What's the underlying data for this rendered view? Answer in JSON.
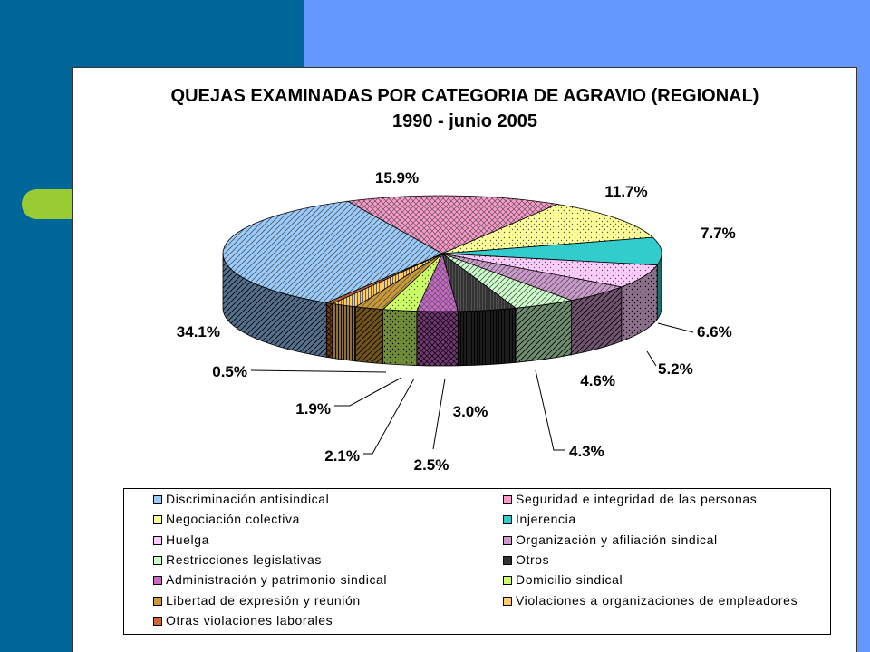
{
  "chart_data": {
    "type": "pie",
    "title": "QUEJAS EXAMINADAS POR CATEGORIA DE AGRAVIO (REGIONAL)",
    "subtitle": "1990 - junio 2005",
    "legend_position": "bottom",
    "slices": [
      {
        "name": "Seguridad e integridad de las personas",
        "value": 15.9,
        "label": "15.9%",
        "color": "#ff99cc",
        "pattern": "crosshatch"
      },
      {
        "name": "Negociación colectiva",
        "value": 11.7,
        "label": "11.7%",
        "color": "#ffff99",
        "pattern": "dots"
      },
      {
        "name": "Injerencia",
        "value": 7.7,
        "label": "7.7%",
        "color": "#33cccc",
        "pattern": "solid"
      },
      {
        "name": "Huelga",
        "value": 6.6,
        "label": "6.6%",
        "color": "#ffccff",
        "pattern": "dots"
      },
      {
        "name": "Organización y afiliación sindical",
        "value": 5.2,
        "label": "5.2%",
        "color": "#cc99cc",
        "pattern": "diagonal"
      },
      {
        "name": "Restricciones legislativas",
        "value": 4.6,
        "label": "4.6%",
        "color": "#ccffcc",
        "pattern": "diagonal"
      },
      {
        "name": "Otros",
        "value": 4.3,
        "label": "4.3%",
        "color": "#333333",
        "pattern": "vertical"
      },
      {
        "name": "Administración y patrimonio sindical",
        "value": 3.0,
        "label": "3.0%",
        "color": "#cc66cc",
        "pattern": "crosshatch"
      },
      {
        "name": "Domicilio sindical",
        "value": 2.5,
        "label": "2.5%",
        "color": "#ccff66",
        "pattern": "dots"
      },
      {
        "name": "Libertad de expresión y reunión",
        "value": 2.1,
        "label": "2.1%",
        "color": "#cc9933",
        "pattern": "diagonal"
      },
      {
        "name": "Violaciones a organizaciones de empleadores",
        "value": 1.9,
        "label": "1.9%",
        "color": "#ffcc66",
        "pattern": "vertical"
      },
      {
        "name": "Otras violaciones laborales",
        "value": 0.5,
        "label": "0.5%",
        "color": "#cc6633",
        "pattern": "crosshatch"
      },
      {
        "name": "Discriminación antisindical",
        "value": 34.1,
        "label": "34.1%",
        "color": "#99ccff",
        "pattern": "diagonal"
      }
    ],
    "legend": [
      {
        "name": "Discriminación antisindical",
        "color": "#99ccff"
      },
      {
        "name": "Seguridad e integridad de las personas",
        "color": "#ff99cc"
      },
      {
        "name": "Negociación colectiva",
        "color": "#ffff99"
      },
      {
        "name": "Injerencia",
        "color": "#33cccc"
      },
      {
        "name": "Huelga",
        "color": "#ffccff"
      },
      {
        "name": "Organización y afiliación sindical",
        "color": "#cc99cc"
      },
      {
        "name": "Restricciones legislativas",
        "color": "#ccffcc"
      },
      {
        "name": "Otros",
        "color": "#333333"
      },
      {
        "name": "Administración y patrimonio sindical",
        "color": "#cc66cc"
      },
      {
        "name": "Domicilio sindical",
        "color": "#ccff66"
      },
      {
        "name": "Libertad de expresión y reunión",
        "color": "#cc9933"
      },
      {
        "name": "Violaciones a organizaciones de empleadores",
        "color": "#ffcc66"
      },
      {
        "name": "Otras violaciones laborales",
        "color": "#cc6633"
      }
    ]
  }
}
